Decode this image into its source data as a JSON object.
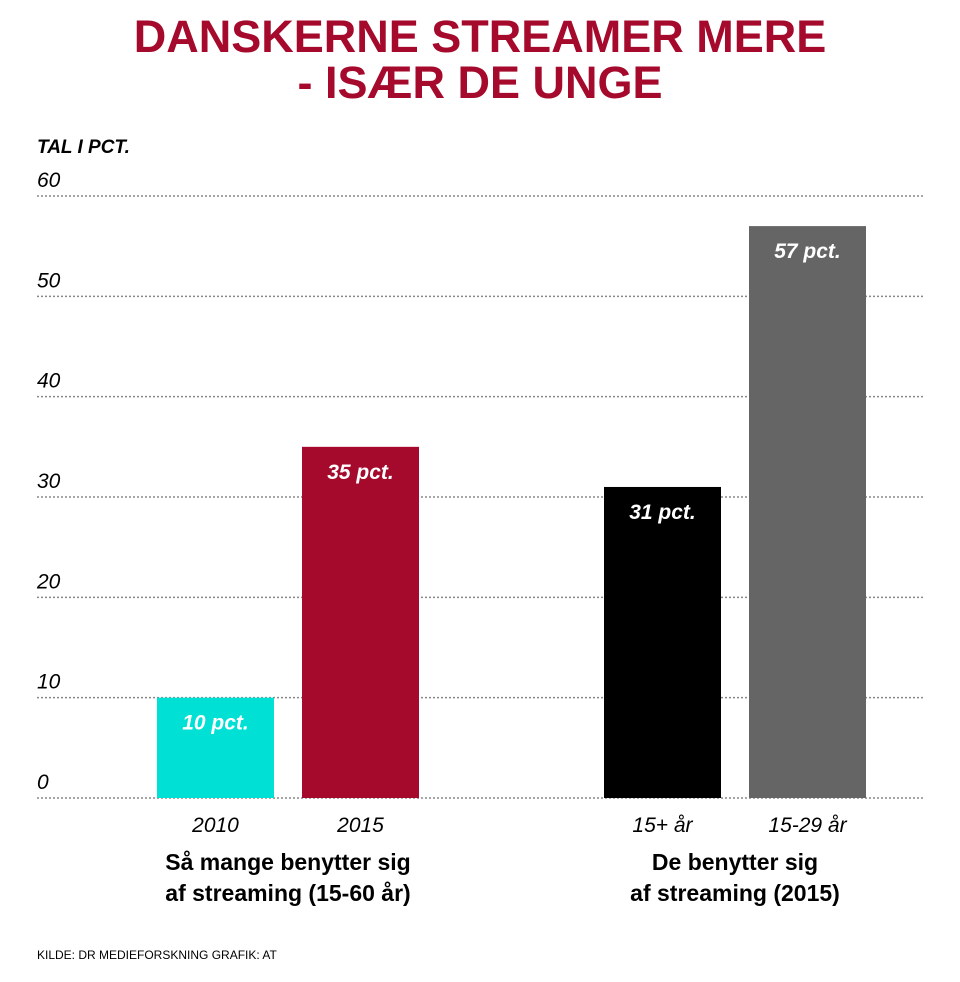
{
  "chart_data": {
    "type": "bar",
    "title": [
      "DANSKERNE STREAMER MERE",
      "- ISÆR DE UNGE"
    ],
    "ylabel": "TAL I PCT.",
    "ylim": [
      0,
      60
    ],
    "yticks": [
      0,
      10,
      20,
      30,
      40,
      50,
      60
    ],
    "grid": true,
    "categories": [
      "2010",
      "2015",
      "15+ år",
      "15-29 år"
    ],
    "values": [
      10,
      35,
      31,
      57
    ],
    "value_labels": [
      "10 pct.",
      "35 pct.",
      "31 pct.",
      "57 pct."
    ],
    "colors": [
      "#00e0d4",
      "#a50a2d",
      "#000000",
      "#656565"
    ],
    "groups": [
      {
        "label": [
          "Så mange benytter sig",
          "af streaming (15-60 år)"
        ],
        "categories": [
          0,
          1
        ]
      },
      {
        "label": [
          "De benytter sig",
          "af streaming (2015)"
        ],
        "categories": [
          2,
          3
        ]
      }
    ],
    "source": "KILDE: DR MEDIEFORSKNING  GRAFIK: AT"
  }
}
